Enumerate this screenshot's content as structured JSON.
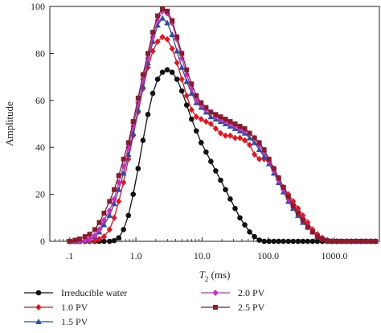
{
  "chart_data": {
    "type": "line",
    "xlabel_italic": "T",
    "xlabel_sub": "2",
    "xlabel_rest": " (ms)",
    "ylabel": "Amplitude",
    "x_scale": "log",
    "xlim": [
      0.05,
      4800
    ],
    "ylim": [
      0,
      100
    ],
    "x_ticks": [
      {
        "value": 0.1,
        "label": ".1"
      },
      {
        "value": 1,
        "label": "1.0"
      },
      {
        "value": 10,
        "label": "10.0"
      },
      {
        "value": 100,
        "label": "100.0"
      },
      {
        "value": 1000,
        "label": "1000.0"
      }
    ],
    "y_ticks": [
      0,
      20,
      40,
      60,
      80,
      100
    ],
    "legend_placement": "bottom",
    "series": [
      {
        "name": "Irreducible water",
        "color": "#111111",
        "marker": "circle",
        "x": [
          0.1,
          0.12,
          0.14,
          0.17,
          0.2,
          0.24,
          0.28,
          0.33,
          0.4,
          0.47,
          0.55,
          0.65,
          0.77,
          0.91,
          1.08,
          1.28,
          1.52,
          1.8,
          2.13,
          2.52,
          2.98,
          3.53,
          4.18,
          4.95,
          5.86,
          6.94,
          8.2,
          9.7,
          11.5,
          13.6,
          16.1,
          19.1,
          22.6,
          26.7,
          31.6,
          37.4,
          44.3,
          52.4,
          62.0,
          73.4,
          86.9,
          103,
          122,
          144,
          170,
          202,
          239,
          283,
          335,
          396,
          469,
          555,
          657,
          778,
          920,
          1090,
          1290,
          1530,
          1810,
          2140,
          2530,
          3000,
          3550,
          4200
        ],
        "y": [
          0,
          0,
          0,
          0,
          0,
          0,
          0,
          0,
          0,
          0.3,
          1.5,
          5,
          11,
          20,
          31,
          43,
          54,
          63,
          69,
          72,
          73,
          72,
          69,
          64,
          58,
          52,
          47,
          42,
          38,
          34,
          30,
          26,
          22,
          18,
          14,
          10,
          7,
          4,
          2,
          0.5,
          0,
          0,
          0,
          0,
          0,
          0,
          0,
          0,
          0,
          0,
          0,
          0,
          0,
          0,
          0,
          0,
          0,
          0,
          0,
          0,
          0,
          0,
          0,
          0
        ]
      },
      {
        "name": "1.0 PV",
        "color": "#e8141c",
        "marker": "diamond",
        "x": [
          0.1,
          0.12,
          0.14,
          0.17,
          0.2,
          0.24,
          0.28,
          0.33,
          0.4,
          0.47,
          0.55,
          0.65,
          0.77,
          0.91,
          1.08,
          1.28,
          1.52,
          1.8,
          2.13,
          2.52,
          2.98,
          3.53,
          4.18,
          4.95,
          5.86,
          6.94,
          8.2,
          9.7,
          11.5,
          13.6,
          16.1,
          19.1,
          22.6,
          26.7,
          31.6,
          37.4,
          44.3,
          52.4,
          62.0,
          73.4,
          86.9,
          103,
          122,
          144,
          170,
          202,
          239,
          283,
          335,
          396,
          469,
          555,
          657,
          778,
          920,
          1090,
          1290,
          1530,
          1810,
          2140,
          2530,
          3000,
          3550,
          4200
        ],
        "y": [
          0,
          0,
          0,
          0,
          0,
          0.3,
          1,
          2,
          5,
          10,
          17,
          25,
          35,
          45,
          55,
          65,
          74,
          81,
          85,
          87,
          86,
          82,
          76,
          69,
          62,
          56,
          53,
          52,
          51,
          50,
          48,
          46,
          45,
          45,
          44,
          44,
          43,
          41,
          37,
          35,
          35,
          34,
          31,
          27,
          23,
          20,
          17,
          14,
          11,
          8,
          5,
          3,
          1.5,
          0.5,
          0,
          0,
          0,
          0,
          0,
          0,
          0,
          0,
          0,
          0
        ]
      },
      {
        "name": "1.5 PV",
        "color": "#2a4ea6",
        "marker": "triangle",
        "x": [
          0.1,
          0.12,
          0.14,
          0.17,
          0.2,
          0.24,
          0.28,
          0.33,
          0.4,
          0.47,
          0.55,
          0.65,
          0.77,
          0.91,
          1.08,
          1.28,
          1.52,
          1.8,
          2.13,
          2.52,
          2.98,
          3.53,
          4.18,
          4.95,
          5.86,
          6.94,
          8.2,
          9.7,
          11.5,
          13.6,
          16.1,
          19.1,
          22.6,
          26.7,
          31.6,
          37.4,
          44.3,
          52.4,
          62.0,
          73.4,
          86.9,
          103,
          122,
          144,
          170,
          202,
          239,
          283,
          335,
          396,
          469,
          555,
          657,
          778,
          920,
          1090,
          1290,
          1530,
          1810,
          2140,
          2530,
          3000,
          3550,
          4200
        ],
        "y": [
          0,
          0,
          0,
          0.5,
          1,
          2,
          4,
          7,
          11,
          16,
          22,
          29,
          37,
          46,
          56,
          66,
          76,
          85,
          92,
          95,
          93,
          88,
          81,
          74,
          68,
          63,
          59,
          57,
          55,
          53,
          52,
          51,
          50,
          49,
          48,
          47,
          46,
          44,
          42,
          39,
          36,
          33,
          29,
          25,
          21,
          17,
          14,
          11,
          8,
          6,
          4,
          2,
          1,
          0.3,
          0,
          0,
          0,
          0,
          0,
          0,
          0,
          0,
          0,
          0
        ]
      },
      {
        "name": "2.0 PV",
        "color": "#c62ec8",
        "marker": "diamond",
        "x": [
          0.1,
          0.12,
          0.14,
          0.17,
          0.2,
          0.24,
          0.28,
          0.33,
          0.4,
          0.47,
          0.55,
          0.65,
          0.77,
          0.91,
          1.08,
          1.28,
          1.52,
          1.8,
          2.13,
          2.52,
          2.98,
          3.53,
          4.18,
          4.95,
          5.86,
          6.94,
          8.2,
          9.7,
          11.5,
          13.6,
          16.1,
          19.1,
          22.6,
          26.7,
          31.6,
          37.4,
          44.3,
          52.4,
          62.0,
          73.4,
          86.9,
          103,
          122,
          144,
          170,
          202,
          239,
          283,
          335,
          396,
          469,
          555,
          657,
          778,
          920,
          1090,
          1290,
          1530,
          1810,
          2140,
          2530,
          3000,
          3550,
          4200
        ],
        "y": [
          0,
          0,
          0,
          0.5,
          1,
          2.5,
          5,
          9,
          13,
          18,
          25,
          32,
          40,
          49,
          59,
          69,
          78,
          87,
          94,
          98,
          97,
          93,
          86,
          78,
          71,
          65,
          60,
          58,
          56,
          55,
          53,
          52,
          51,
          50,
          49,
          48,
          47,
          46,
          44,
          41,
          38,
          34,
          30,
          26,
          22,
          18,
          15,
          12,
          9,
          6,
          4,
          2,
          1,
          0.3,
          0,
          0,
          0,
          0,
          0,
          0,
          0,
          0,
          0,
          0
        ]
      },
      {
        "name": "2.5 PV",
        "color": "#8b1a2a",
        "marker": "square",
        "x": [
          0.1,
          0.12,
          0.14,
          0.17,
          0.2,
          0.24,
          0.28,
          0.33,
          0.4,
          0.47,
          0.55,
          0.65,
          0.77,
          0.91,
          1.08,
          1.28,
          1.52,
          1.8,
          2.13,
          2.52,
          2.98,
          3.53,
          4.18,
          4.95,
          5.86,
          6.94,
          8.2,
          9.7,
          11.5,
          13.6,
          16.1,
          19.1,
          22.6,
          26.7,
          31.6,
          37.4,
          44.3,
          52.4,
          62.0,
          73.4,
          86.9,
          103,
          122,
          144,
          170,
          202,
          239,
          283,
          335,
          396,
          469,
          555,
          657,
          778,
          920,
          1090,
          1290,
          1530,
          1810,
          2140,
          2530,
          3000,
          3550,
          4200
        ],
        "y": [
          0,
          0.5,
          1,
          2,
          3,
          5,
          8,
          12,
          17,
          22,
          28,
          35,
          42,
          51,
          61,
          71,
          80,
          89,
          96,
          99,
          98,
          94,
          87,
          80,
          73,
          67,
          62,
          59,
          57,
          55,
          54,
          53,
          52,
          51,
          50,
          49,
          48,
          46,
          44,
          42,
          39,
          35,
          31,
          27,
          23,
          19,
          15,
          12,
          9,
          6,
          4,
          2,
          1,
          0.3,
          0,
          0,
          0,
          0,
          0,
          0,
          0,
          0,
          0,
          0
        ]
      }
    ]
  }
}
